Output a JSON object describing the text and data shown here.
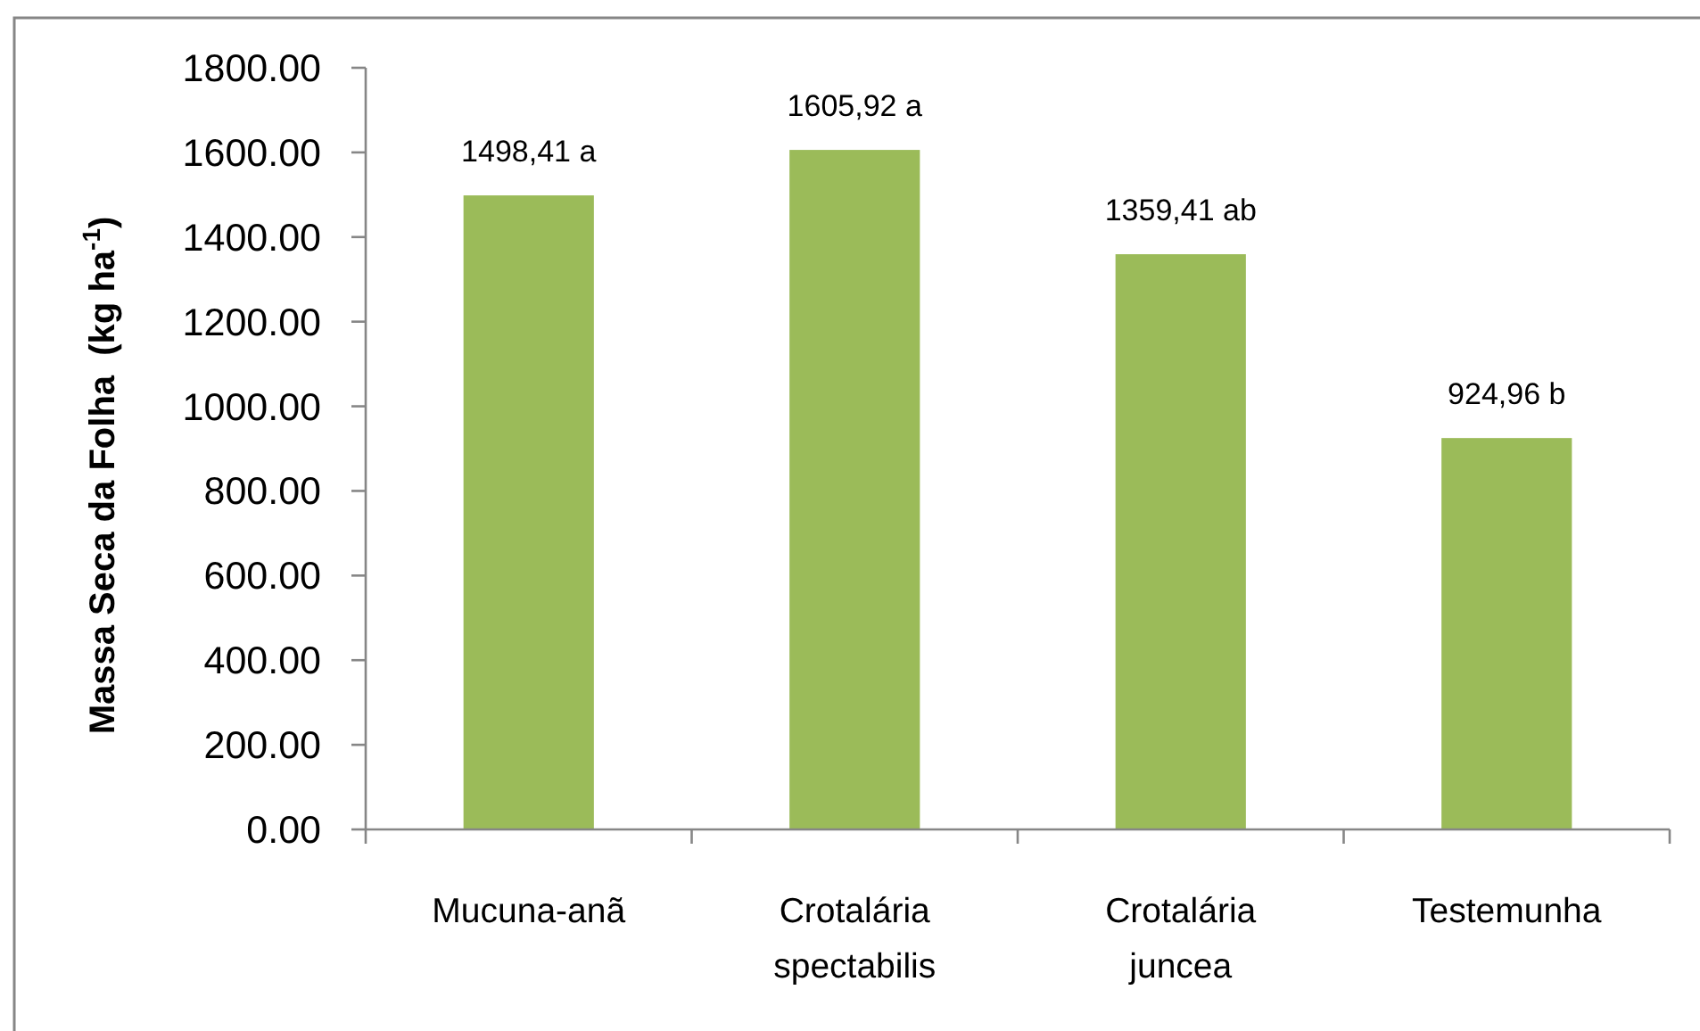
{
  "chart_data": {
    "type": "bar",
    "ylabel": "Massa Seca da Folha  (kg ha$^{-1}$)",
    "categories": [
      "Mucuna-anã",
      "Crotalária spectabilis",
      "Crotalária juncea",
      "Testemunha"
    ],
    "values": [
      1498.41,
      1605.92,
      1359.41,
      924.96
    ],
    "value_labels": [
      "1498,41 a",
      "1605,92 a",
      "1359,41 ab",
      "924,96 b"
    ],
    "color": "#9bbb59",
    "ylim": [
      0,
      1800
    ],
    "yticks": [
      {
        "value": 0,
        "label": "0.00"
      },
      {
        "value": 200,
        "label": "200.00"
      },
      {
        "value": 400,
        "label": "400.00"
      },
      {
        "value": 600,
        "label": "600.00"
      },
      {
        "value": 800,
        "label": "800.00"
      },
      {
        "value": 1000,
        "label": "1000.00"
      },
      {
        "value": 1200,
        "label": "1200.00"
      },
      {
        "value": 1400,
        "label": "1400.00"
      },
      {
        "value": 1600,
        "label": "1600.00"
      },
      {
        "value": 1800,
        "label": "1800.00"
      }
    ]
  }
}
